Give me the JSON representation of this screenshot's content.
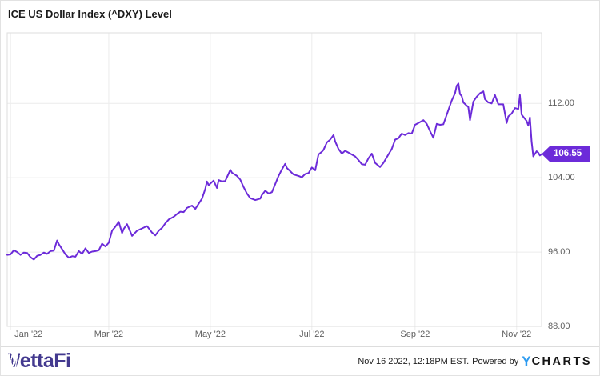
{
  "header": {
    "title": "ICE US Dollar Index (^DXY) Level"
  },
  "badge": {
    "value": "106.55"
  },
  "footer": {
    "brand_v": "V",
    "brand_rest": "ettaFi",
    "timestamp": "Nov 16 2022, 12:18PM EST.",
    "powered_by": "Powered by",
    "ycharts_logo": {
      "y": "Y",
      "charts": "CHARTS"
    }
  },
  "colors": {
    "line": "#6C2BD9",
    "badge_bg": "#6C2BD9",
    "grid": "#ececec",
    "plot_border": "#dddddd",
    "axis_label": "#5f5f5f",
    "title_color": "#1a1a1a",
    "footer_text": "#222222",
    "vettafi_purple": "#43398F",
    "ycharts_blue": "#2D9BF0",
    "ycharts_dark": "#151515"
  },
  "chart_data": {
    "type": "line",
    "title": "ICE US Dollar Index (^DXY) Level",
    "series_name": "ICE US Dollar Index (^DXY) Level",
    "x_unit": "days, chart spans Dec 30 2021 to Nov 16 2022",
    "x_domain": [
      0,
      321
    ],
    "x_ticks": [
      {
        "pos": 2,
        "label": "Jan '22"
      },
      {
        "pos": 61,
        "label": "Mar '22"
      },
      {
        "pos": 122,
        "label": "May '22"
      },
      {
        "pos": 183,
        "label": "Jul '22"
      },
      {
        "pos": 245,
        "label": "Sep '22"
      },
      {
        "pos": 306,
        "label": "Nov '22"
      }
    ],
    "ylim": [
      88,
      119.6
    ],
    "y_ticks": [
      {
        "pos": 88,
        "label": "88.00"
      },
      {
        "pos": 96,
        "label": "96.00"
      },
      {
        "pos": 104,
        "label": "104.00"
      },
      {
        "pos": 112,
        "label": "112.00"
      }
    ],
    "grid": true,
    "legend": "none",
    "last_value": 106.55,
    "points": [
      [
        0,
        95.7
      ],
      [
        2,
        95.75
      ],
      [
        4,
        96.2
      ],
      [
        6,
        96.0
      ],
      [
        8,
        95.7
      ],
      [
        10,
        95.95
      ],
      [
        12,
        95.9
      ],
      [
        14,
        95.45
      ],
      [
        16,
        95.2
      ],
      [
        18,
        95.6
      ],
      [
        20,
        95.7
      ],
      [
        22,
        95.95
      ],
      [
        24,
        95.8
      ],
      [
        26,
        96.1
      ],
      [
        28,
        96.15
      ],
      [
        30,
        97.25
      ],
      [
        31,
        96.85
      ],
      [
        33,
        96.3
      ],
      [
        35,
        95.75
      ],
      [
        37,
        95.4
      ],
      [
        39,
        95.55
      ],
      [
        41,
        95.5
      ],
      [
        43,
        96.1
      ],
      [
        45,
        95.8
      ],
      [
        47,
        96.4
      ],
      [
        49,
        95.9
      ],
      [
        51,
        96.05
      ],
      [
        53,
        96.1
      ],
      [
        55,
        96.2
      ],
      [
        57,
        96.9
      ],
      [
        59,
        96.6
      ],
      [
        61,
        97.0
      ],
      [
        63,
        98.3
      ],
      [
        65,
        98.75
      ],
      [
        67,
        99.25
      ],
      [
        69,
        98.05
      ],
      [
        70,
        98.5
      ],
      [
        72,
        99.0
      ],
      [
        75,
        97.75
      ],
      [
        78,
        98.3
      ],
      [
        81,
        98.55
      ],
      [
        84,
        98.8
      ],
      [
        87,
        98.1
      ],
      [
        89,
        97.8
      ],
      [
        91,
        98.3
      ],
      [
        93,
        98.6
      ],
      [
        95,
        99.1
      ],
      [
        97,
        99.5
      ],
      [
        100,
        99.8
      ],
      [
        102,
        100.1
      ],
      [
        104,
        100.35
      ],
      [
        106,
        100.3
      ],
      [
        108,
        100.75
      ],
      [
        111,
        101.0
      ],
      [
        113,
        100.65
      ],
      [
        115,
        101.2
      ],
      [
        117,
        101.75
      ],
      [
        119,
        102.8
      ],
      [
        120,
        103.6
      ],
      [
        121,
        103.2
      ],
      [
        124,
        103.7
      ],
      [
        126,
        102.9
      ],
      [
        127,
        103.75
      ],
      [
        129,
        103.6
      ],
      [
        131,
        103.65
      ],
      [
        134,
        104.85
      ],
      [
        135,
        104.55
      ],
      [
        138,
        104.2
      ],
      [
        140,
        103.8
      ],
      [
        142,
        103.0
      ],
      [
        144,
        102.3
      ],
      [
        146,
        101.8
      ],
      [
        149,
        101.6
      ],
      [
        152,
        101.75
      ],
      [
        153,
        102.15
      ],
      [
        155,
        102.6
      ],
      [
        157,
        102.3
      ],
      [
        159,
        102.45
      ],
      [
        161,
        103.3
      ],
      [
        163,
        104.2
      ],
      [
        165,
        104.9
      ],
      [
        167,
        105.5
      ],
      [
        168,
        105.05
      ],
      [
        170,
        104.7
      ],
      [
        172,
        104.35
      ],
      [
        175,
        104.2
      ],
      [
        177,
        104.05
      ],
      [
        179,
        104.4
      ],
      [
        181,
        104.5
      ],
      [
        183,
        105.1
      ],
      [
        185,
        104.8
      ],
      [
        187,
        106.5
      ],
      [
        189,
        106.8
      ],
      [
        190,
        107.0
      ],
      [
        192,
        107.8
      ],
      [
        194,
        108.1
      ],
      [
        196,
        108.6
      ],
      [
        197,
        107.9
      ],
      [
        199,
        107.1
      ],
      [
        201,
        106.6
      ],
      [
        203,
        106.9
      ],
      [
        205,
        106.7
      ],
      [
        207,
        106.5
      ],
      [
        209,
        106.3
      ],
      [
        211,
        105.9
      ],
      [
        213,
        105.45
      ],
      [
        215,
        105.4
      ],
      [
        217,
        106.1
      ],
      [
        219,
        106.6
      ],
      [
        221,
        105.6
      ],
      [
        224,
        105.15
      ],
      [
        226,
        105.6
      ],
      [
        229,
        106.5
      ],
      [
        231,
        107.1
      ],
      [
        233,
        108.1
      ],
      [
        235,
        108.25
      ],
      [
        237,
        108.75
      ],
      [
        239,
        108.6
      ],
      [
        241,
        108.8
      ],
      [
        243,
        108.75
      ],
      [
        245,
        109.7
      ],
      [
        247,
        109.9
      ],
      [
        250,
        110.2
      ],
      [
        252,
        109.8
      ],
      [
        254,
        109.0
      ],
      [
        256,
        108.3
      ],
      [
        258,
        109.8
      ],
      [
        260,
        109.7
      ],
      [
        262,
        109.75
      ],
      [
        265,
        111.3
      ],
      [
        267,
        112.3
      ],
      [
        269,
        113.1
      ],
      [
        270,
        113.9
      ],
      [
        271,
        114.15
      ],
      [
        272,
        113.0
      ],
      [
        273,
        112.8
      ],
      [
        274,
        112.1
      ],
      [
        277,
        111.6
      ],
      [
        278,
        110.2
      ],
      [
        280,
        112.2
      ],
      [
        282,
        112.7
      ],
      [
        284,
        113.1
      ],
      [
        286,
        113.3
      ],
      [
        287,
        112.45
      ],
      [
        289,
        112.1
      ],
      [
        291,
        112.0
      ],
      [
        293,
        112.9
      ],
      [
        295,
        111.9
      ],
      [
        298,
        111.9
      ],
      [
        300,
        109.9
      ],
      [
        301,
        110.6
      ],
      [
        303,
        110.9
      ],
      [
        305,
        111.5
      ],
      [
        306,
        111.45
      ],
      [
        307,
        111.4
      ],
      [
        308,
        112.9
      ],
      [
        309,
        110.8
      ],
      [
        312,
        110.1
      ],
      [
        313,
        109.6
      ],
      [
        314,
        110.5
      ],
      [
        315,
        107.9
      ],
      [
        316,
        106.3
      ],
      [
        318,
        106.85
      ],
      [
        319,
        106.7
      ],
      [
        320,
        106.4
      ],
      [
        321,
        106.55
      ]
    ]
  }
}
